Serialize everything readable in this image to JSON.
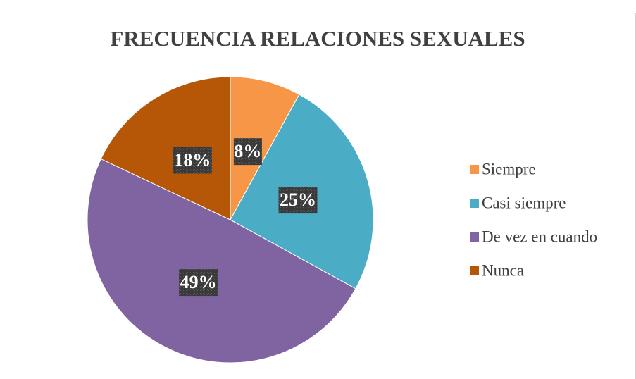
{
  "chart_data": {
    "type": "pie",
    "title": "FRECUENCIA RELACIONES SEXUALES",
    "categories": [
      "Siempre",
      "Casi siempre",
      "De vez en cuando",
      "Nunca"
    ],
    "values": [
      8,
      25,
      49,
      18
    ],
    "value_labels": [
      "8%",
      "25%",
      "49%",
      "18%"
    ],
    "colors": [
      "#f79646",
      "#4bacc6",
      "#8064a2",
      "#b65708"
    ],
    "legend": "right"
  }
}
